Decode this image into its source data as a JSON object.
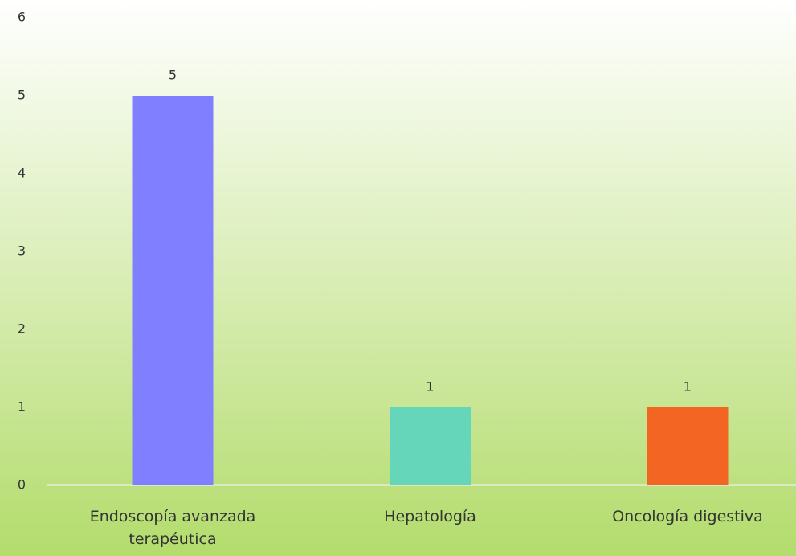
{
  "chart_data": {
    "type": "bar",
    "categories": [
      "Endoscopía avanzada terapéutica",
      "Hepatología",
      "Oncología digestiva"
    ],
    "values": [
      5,
      1,
      1
    ],
    "colors": [
      "#7f7fff",
      "#66d6bb",
      "#f26522"
    ],
    "ylim": [
      0,
      6
    ],
    "yticks": [
      0,
      1,
      2,
      3,
      4,
      5,
      6
    ],
    "grid": false,
    "data_labels": true
  }
}
